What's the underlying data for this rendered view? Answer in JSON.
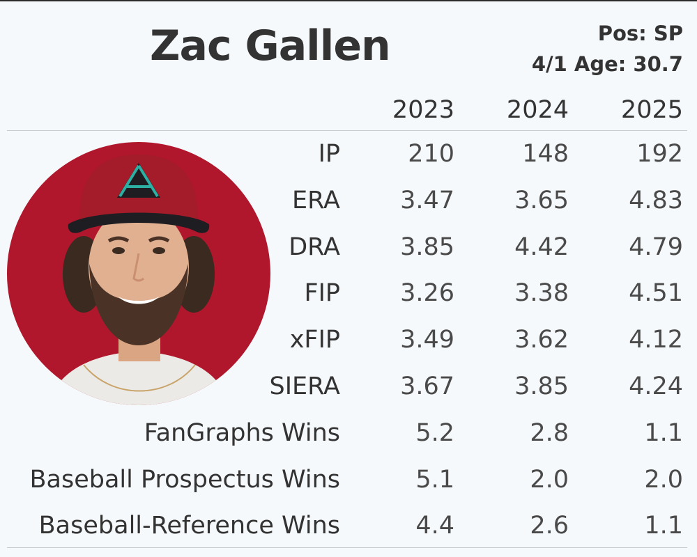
{
  "player": {
    "name": "Zac Gallen",
    "position": "Pos: SP",
    "age": "4/1 Age: 30.7"
  },
  "colors": {
    "background": "#f5f9fb",
    "text": "#333333",
    "photo_backdrop": "#b0172c",
    "cap": "#a41b2a",
    "cap_logo": "#2bb0a3"
  },
  "photo_icon": "player-headshot",
  "years": [
    "2023",
    "2024",
    "2025"
  ],
  "stats": [
    {
      "label": "IP",
      "values": [
        "210",
        "148",
        "192"
      ]
    },
    {
      "label": "ERA",
      "values": [
        "3.47",
        "3.65",
        "4.83"
      ]
    },
    {
      "label": "DRA",
      "values": [
        "3.85",
        "4.42",
        "4.79"
      ]
    },
    {
      "label": "FIP",
      "values": [
        "3.26",
        "3.38",
        "4.51"
      ]
    },
    {
      "label": "xFIP",
      "values": [
        "3.49",
        "3.62",
        "4.12"
      ]
    },
    {
      "label": "SIERA",
      "values": [
        "3.67",
        "3.85",
        "4.24"
      ]
    },
    {
      "label": "FanGraphs Wins",
      "values": [
        "5.2",
        "2.8",
        "1.1"
      ]
    },
    {
      "label": "Baseball Prospectus Wins",
      "values": [
        "5.1",
        "2.0",
        "2.0"
      ]
    },
    {
      "label": "Baseball-Reference Wins",
      "values": [
        "4.4",
        "2.6",
        "1.1"
      ]
    }
  ]
}
